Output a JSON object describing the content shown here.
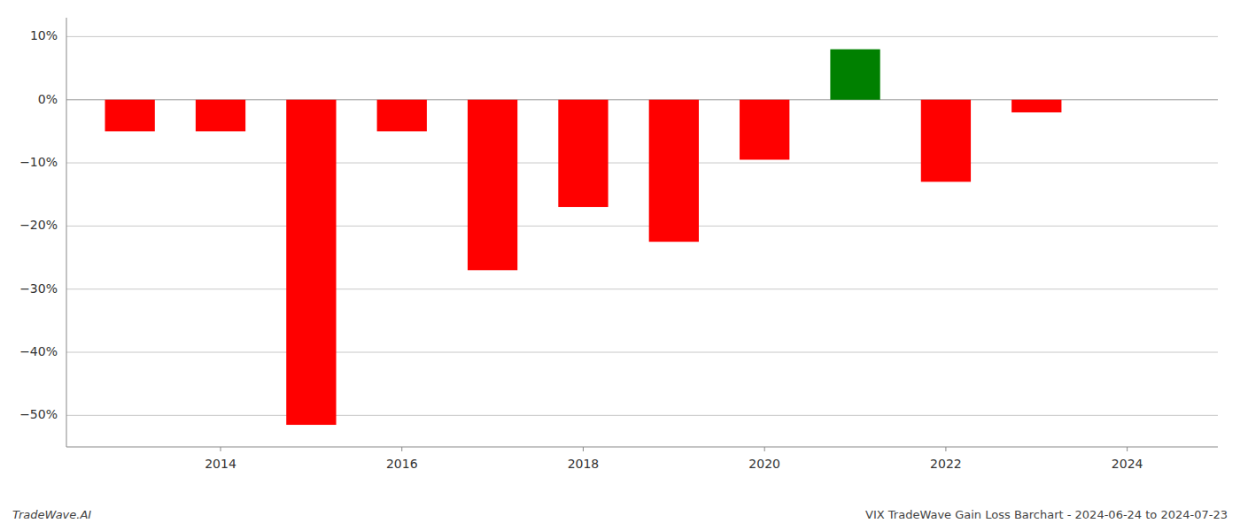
{
  "chart_data": {
    "type": "bar",
    "title": "VIX TradeWave Gain Loss Barchart - 2024-06-24 to 2024-07-23",
    "annotations": [
      "TradeWave.AI"
    ],
    "x": [
      2013,
      2014,
      2015,
      2016,
      2017,
      2018,
      2019,
      2020,
      2021,
      2022,
      2023
    ],
    "values": [
      -5.0,
      -5.0,
      -51.5,
      -5.0,
      -27.0,
      -17.0,
      -22.5,
      -9.5,
      8.0,
      -13.0,
      -2.0
    ],
    "colors": [
      "#ff0000",
      "#ff0000",
      "#ff0000",
      "#ff0000",
      "#ff0000",
      "#ff0000",
      "#ff0000",
      "#ff0000",
      "#008000",
      "#ff0000",
      "#ff0000"
    ],
    "xlim": [
      2012.3,
      2025.0
    ],
    "xticks": [
      2014,
      2016,
      2018,
      2020,
      2022,
      2024
    ],
    "ylim": [
      -55,
      13
    ],
    "yticks": [
      {
        "value": 10,
        "label": "10%"
      },
      {
        "value": 0,
        "label": "0%"
      },
      {
        "value": -10,
        "label": "−10%"
      },
      {
        "value": -20,
        "label": "−20%"
      },
      {
        "value": -30,
        "label": "−30%"
      },
      {
        "value": -40,
        "label": "−40%"
      },
      {
        "value": -50,
        "label": "−50%"
      }
    ],
    "grid": true
  }
}
